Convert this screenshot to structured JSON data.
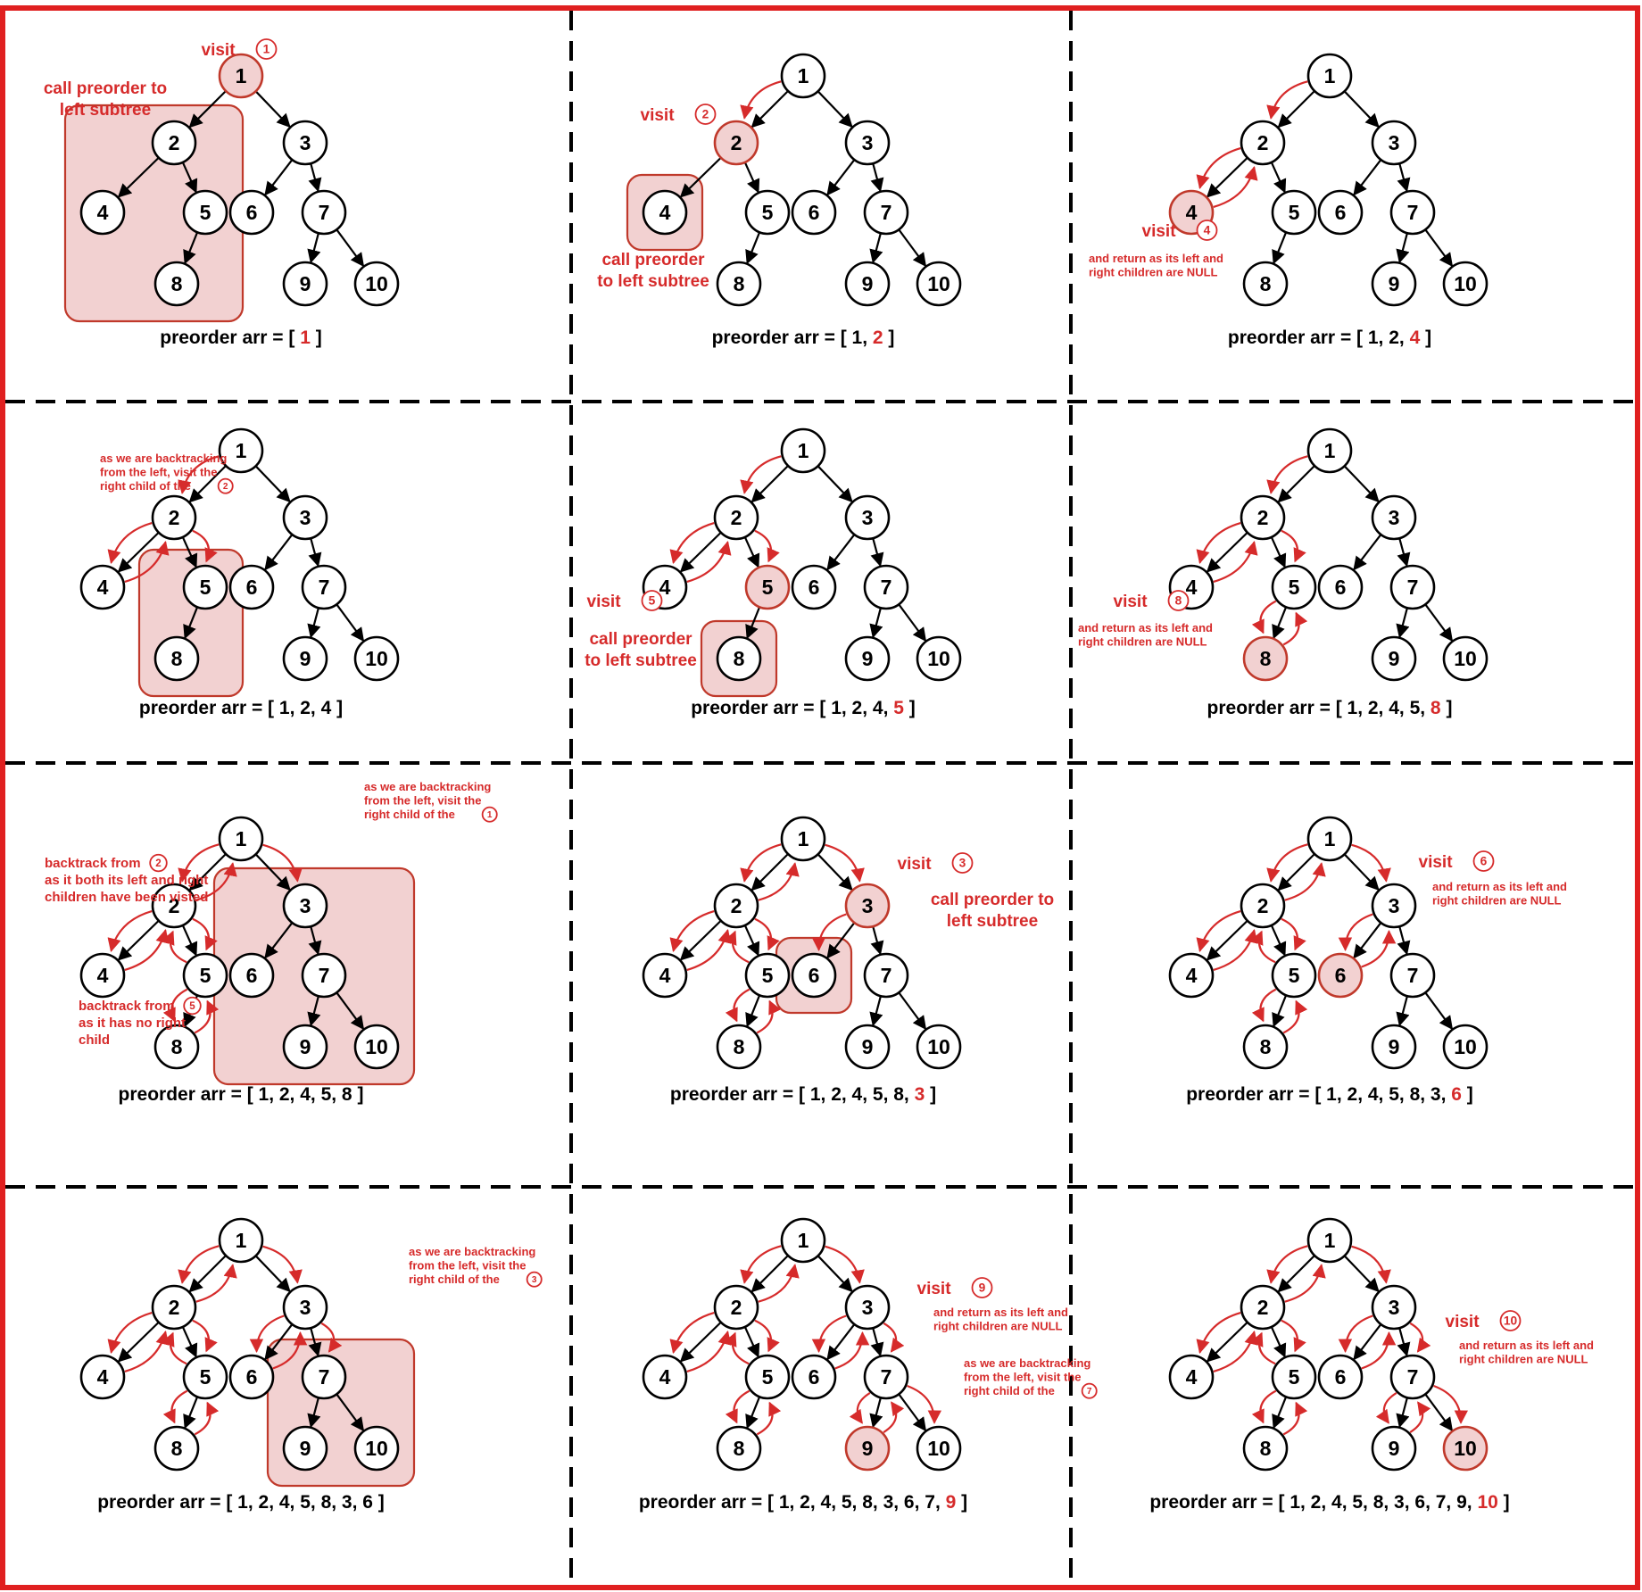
{
  "colors": {
    "accent": "#d62b2b",
    "highlight_fill": "#f2d1d1",
    "border": "#e02020",
    "ink": "#000000"
  },
  "caption_prefix": "preorder arr = [ ",
  "caption_suffix": " ]",
  "tree": {
    "nodes": [
      "1",
      "2",
      "3",
      "4",
      "5",
      "6",
      "7",
      "8",
      "9",
      "10"
    ],
    "edges": [
      [
        "1",
        "2"
      ],
      [
        "1",
        "3"
      ],
      [
        "2",
        "4"
      ],
      [
        "2",
        "5"
      ],
      [
        "5",
        "8"
      ],
      [
        "3",
        "6"
      ],
      [
        "3",
        "7"
      ],
      [
        "7",
        "9"
      ],
      [
        "7",
        "10"
      ]
    ]
  },
  "panels": [
    {
      "visited": "1",
      "box": [
        "2",
        "4",
        "5",
        "8"
      ],
      "trail": [],
      "prev": "",
      "new": "1",
      "notes": [
        {
          "kind": "visit",
          "text": "visit",
          "num": "1"
        },
        {
          "kind": "big",
          "lines": [
            "call preorder to",
            "left subtree"
          ]
        }
      ]
    },
    {
      "visited": "2",
      "box": [
        "4"
      ],
      "trail": [
        "1-2"
      ],
      "prev": "1, ",
      "new": "2",
      "notes": [
        {
          "kind": "visit",
          "text": "visit",
          "num": "2"
        },
        {
          "kind": "big",
          "lines": [
            "call preorder",
            "to left subtree"
          ]
        }
      ]
    },
    {
      "visited": "4",
      "box": [],
      "trail": [
        "1-2",
        "2-4",
        "4-2"
      ],
      "prev": "1, 2, ",
      "new": "4",
      "notes": [
        {
          "kind": "visit",
          "text": "visit",
          "num": "4"
        },
        {
          "kind": "small",
          "lines": [
            "and return as its left and",
            "right children are NULL"
          ]
        }
      ]
    },
    {
      "visited": "",
      "box": [
        "5",
        "8"
      ],
      "trail": [
        "1-2",
        "2-4",
        "4-2",
        "2-5"
      ],
      "prev": "1, 2, 4",
      "new": "",
      "notes": [
        {
          "kind": "small",
          "lines": [
            "as  we  are  backtracking",
            "from   the   left,  visit  the",
            "right child of the"
          ],
          "num": "2"
        }
      ]
    },
    {
      "visited": "5",
      "box": [
        "8"
      ],
      "trail": [
        "1-2",
        "2-4",
        "4-2",
        "2-5"
      ],
      "prev": "1, 2, 4, ",
      "new": "5",
      "notes": [
        {
          "kind": "visit",
          "text": "visit",
          "num": "5"
        },
        {
          "kind": "big",
          "lines": [
            "call preorder",
            "to left subtree"
          ]
        }
      ]
    },
    {
      "visited": "8",
      "box": [],
      "trail": [
        "1-2",
        "2-4",
        "4-2",
        "2-5",
        "5-8",
        "8-5"
      ],
      "prev": "1, 2, 4, 5, ",
      "new": "8",
      "notes": [
        {
          "kind": "visit",
          "text": "visit",
          "num": "8"
        },
        {
          "kind": "small",
          "lines": [
            "and return as its left and",
            "right children are NULL"
          ]
        }
      ]
    },
    {
      "visited": "",
      "box": [
        "3",
        "6",
        "7",
        "9",
        "10"
      ],
      "trail": [
        "1-2",
        "2-4",
        "4-2",
        "2-5",
        "5-8",
        "8-5",
        "5-2",
        "2-1",
        "1-3"
      ],
      "prev": "1, 2, 4, 5, 8",
      "new": "",
      "notes": [
        {
          "kind": "small",
          "lines": [
            "as  we  are  backtracking",
            "from   the   left,   visit   the",
            "right child of the"
          ],
          "num": "1"
        },
        {
          "kind": "mid",
          "lines": [
            "backtrack from",
            "as it both its left and right",
            "children have been visted"
          ],
          "num": "2"
        },
        {
          "kind": "mid",
          "lines": [
            "backtrack from",
            "as    it    has    no    right",
            "child"
          ],
          "num": "5"
        }
      ]
    },
    {
      "visited": "3",
      "box": [
        "6"
      ],
      "trail": [
        "1-2",
        "2-4",
        "4-2",
        "2-5",
        "5-8",
        "8-5",
        "5-2",
        "2-1",
        "1-3",
        "3-6"
      ],
      "prev": "1, 2, 4, 5, 8, ",
      "new": "3",
      "notes": [
        {
          "kind": "visit",
          "text": "visit",
          "num": "3"
        },
        {
          "kind": "big",
          "lines": [
            "call preorder to",
            "left subtree"
          ]
        }
      ]
    },
    {
      "visited": "6",
      "box": [],
      "trail": [
        "1-2",
        "2-4",
        "4-2",
        "2-5",
        "5-8",
        "8-5",
        "5-2",
        "2-1",
        "1-3",
        "3-6",
        "6-3"
      ],
      "prev": "1, 2, 4, 5, 8, 3, ",
      "new": "6",
      "notes": [
        {
          "kind": "visit",
          "text": "visit",
          "num": "6"
        },
        {
          "kind": "small",
          "lines": [
            "and return as its left and",
            "right children are NULL"
          ]
        }
      ]
    },
    {
      "visited": "",
      "box": [
        "7",
        "9",
        "10"
      ],
      "trail": [
        "1-2",
        "2-4",
        "4-2",
        "2-5",
        "5-8",
        "8-5",
        "5-2",
        "2-1",
        "1-3",
        "3-6",
        "6-3",
        "3-7"
      ],
      "prev": "1, 2, 4, 5, 8, 3, 6",
      "new": "",
      "notes": [
        {
          "kind": "small",
          "lines": [
            "as  we  are  backtracking",
            "from   the   left,   visit   the",
            "right child of the"
          ],
          "num": "3"
        }
      ]
    },
    {
      "visited": "9",
      "box": [],
      "trail": [
        "1-2",
        "2-4",
        "4-2",
        "2-5",
        "5-8",
        "8-5",
        "5-2",
        "2-1",
        "1-3",
        "3-6",
        "6-3",
        "3-7",
        "7-9",
        "9-7",
        "7-10"
      ],
      "prev": "1, 2, 4, 5, 8, 3, 6, 7, ",
      "new": "9",
      "notes": [
        {
          "kind": "visit",
          "text": "visit",
          "num": "9"
        },
        {
          "kind": "small",
          "lines": [
            "and return as its left and",
            "right children are NULL"
          ]
        },
        {
          "kind": "small",
          "lines": [
            "as  we  are  backtracking",
            "from   the   left,   visit   the",
            "right child of the"
          ],
          "num": "7"
        }
      ]
    },
    {
      "visited": "10",
      "box": [],
      "trail": [
        "1-2",
        "2-4",
        "4-2",
        "2-5",
        "5-8",
        "8-5",
        "5-2",
        "2-1",
        "1-3",
        "3-6",
        "6-3",
        "3-7",
        "7-9",
        "9-7",
        "7-10"
      ],
      "prev": "1, 2, 4, 5, 8, 3, 6, 7, 9, ",
      "new": "10",
      "notes": [
        {
          "kind": "visit",
          "text": "visit",
          "num": "10"
        },
        {
          "kind": "small",
          "lines": [
            "and return as its left and",
            "right children are NULL"
          ]
        }
      ]
    }
  ]
}
